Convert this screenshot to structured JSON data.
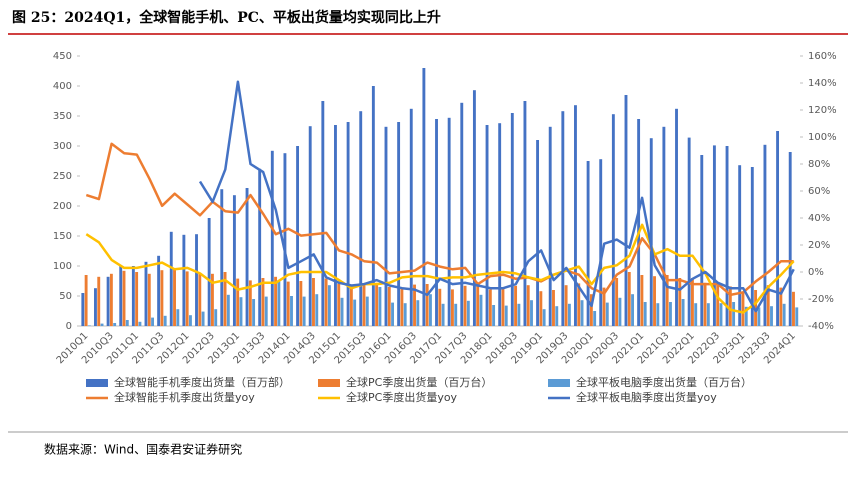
{
  "title": "图 25：2024Q1，全球智能手机、PC、平板出货量均实现同比上升",
  "source": "数据来源：Wind、国泰君安证券研究",
  "chart_data": {
    "type": "bar-line",
    "categories": [
      "2010Q1",
      null,
      "2010Q3",
      null,
      "2011Q1",
      null,
      "2011Q3",
      null,
      "2012Q1",
      null,
      "2012Q3",
      null,
      "2013Q1",
      null,
      "2013Q3",
      null,
      "2014Q1",
      null,
      "2014Q3",
      null,
      "2015Q1",
      null,
      "2015Q3",
      null,
      "2016Q1",
      null,
      "2016Q3",
      null,
      "2017Q1",
      null,
      "2017Q3",
      null,
      "2018Q1",
      null,
      "2018Q3",
      null,
      "2019Q1",
      null,
      "2019Q3",
      null,
      "2020Q1",
      null,
      "2020Q3",
      null,
      "2021Q1",
      null,
      "2021Q3",
      null,
      "2022Q1",
      null,
      "2022Q3",
      null,
      "2023Q1",
      null,
      "2023Q3",
      null,
      "2024Q1"
    ],
    "ylim": [
      0,
      450
    ],
    "yticks": [
      0,
      50,
      100,
      150,
      200,
      250,
      300,
      350,
      400,
      450
    ],
    "y2lim": [
      -40,
      160
    ],
    "y2ticks": [
      {
        "value": -40,
        "label": "-40%"
      },
      {
        "value": -20,
        "label": "-20%"
      },
      {
        "value": 0,
        "label": "0%"
      },
      {
        "value": 20,
        "label": "20%"
      },
      {
        "value": 40,
        "label": "40%"
      },
      {
        "value": 60,
        "label": "60%"
      },
      {
        "value": 80,
        "label": "80%"
      },
      {
        "value": 100,
        "label": "100%"
      },
      {
        "value": 120,
        "label": "120%"
      },
      {
        "value": 140,
        "label": "140%"
      },
      {
        "value": 160,
        "label": "160%"
      }
    ],
    "series": [
      {
        "name": "全球智能手机季度出货量（百万部）",
        "type": "bar",
        "color": "#4472c4",
        "values": [
          55,
          63,
          82,
          100,
          100,
          107,
          117,
          157,
          152,
          153,
          180,
          228,
          218,
          230,
          262,
          292,
          288,
          300,
          333,
          375,
          335,
          340,
          358,
          400,
          332,
          340,
          362,
          430,
          345,
          347,
          372,
          393,
          335,
          338,
          355,
          375,
          310,
          332,
          358,
          368,
          275,
          278,
          353,
          385,
          345,
          313,
          332,
          362,
          314,
          285,
          301,
          300,
          268,
          265,
          302,
          325,
          290
        ]
      },
      {
        "name": "全球PC季度出货量（百万台）",
        "type": "bar",
        "color": "#ed7d31",
        "values": [
          85,
          82,
          87,
          92,
          90,
          87,
          93,
          95,
          91,
          88,
          87,
          90,
          79,
          76,
          80,
          82,
          74,
          75,
          80,
          79,
          70,
          66,
          71,
          72,
          65,
          64,
          69,
          70,
          62,
          61,
          67,
          71,
          61,
          62,
          67,
          68,
          58,
          60,
          68,
          71,
          53,
          64,
          80,
          90,
          85,
          83,
          85,
          80,
          80,
          72,
          68,
          66,
          56,
          60,
          68,
          64,
          57
        ]
      },
      {
        "name": "全球平板电脑季度出货量（百万台）",
        "type": "bar",
        "color": "#5b9bd5",
        "values": [
          1,
          4,
          5,
          10,
          7,
          14,
          17,
          28,
          18,
          24,
          28,
          52,
          48,
          45,
          49,
          76,
          50,
          49,
          53,
          68,
          47,
          44,
          49,
          65,
          39,
          38,
          43,
          53,
          37,
          37,
          42,
          52,
          35,
          34,
          37,
          43,
          28,
          33,
          37,
          43,
          25,
          39,
          47,
          53,
          40,
          38,
          40,
          45,
          38,
          38,
          38,
          40,
          32,
          31,
          33,
          37,
          31
        ]
      },
      {
        "name": "全球智能手机季度出货量yoy",
        "type": "line",
        "axis": "y2",
        "color": "#ed7d31",
        "values": [
          57,
          54,
          95,
          88,
          87,
          69,
          49,
          58,
          50,
          42,
          52,
          45,
          44,
          57,
          43,
          28,
          32,
          27,
          28,
          29,
          16,
          13,
          8,
          7,
          -1,
          0,
          1,
          7,
          4,
          2,
          3,
          -9,
          -3,
          -2,
          -5,
          -4,
          -7,
          -2,
          1,
          -2,
          -12,
          -16,
          -2,
          4,
          25,
          13,
          -6,
          -6,
          -9,
          -9,
          -9,
          -17,
          -15,
          -7,
          0,
          8,
          8
        ]
      },
      {
        "name": "全球PC季度出货量yoy",
        "type": "line",
        "axis": "y2",
        "color": "#ffc000",
        "values": [
          28,
          22,
          9,
          3,
          3,
          5,
          7,
          2,
          3,
          -1,
          -8,
          -6,
          -13,
          -11,
          -8,
          -8,
          -2,
          0,
          0,
          0,
          -6,
          -12,
          -9,
          -9,
          -8,
          -4,
          -3,
          -3,
          -5,
          -4,
          -4,
          -2,
          -1,
          0,
          -1,
          -4,
          -6,
          -2,
          1,
          4,
          -9,
          3,
          5,
          12,
          35,
          13,
          17,
          12,
          12,
          -1,
          -19,
          -28,
          -30,
          -23,
          -11,
          -2,
          8
        ]
      },
      {
        "name": "全球平板电脑季度出货量yoy",
        "type": "line",
        "axis": "y2",
        "color": "#4472c4",
        "values": [
          null,
          null,
          null,
          null,
          null,
          null,
          null,
          null,
          null,
          67,
          52,
          76,
          141,
          80,
          74,
          46,
          3,
          8,
          13,
          -4,
          -8,
          -10,
          -9,
          -6,
          -10,
          -12,
          -13,
          -17,
          -5,
          -9,
          -8,
          -10,
          -12,
          -12,
          -9,
          8,
          16,
          -6,
          3,
          -11,
          -25,
          21,
          24,
          18,
          55,
          5,
          -11,
          -13,
          -5,
          0,
          -8,
          -12,
          -12,
          -29,
          -13,
          -16,
          2
        ]
      }
    ]
  }
}
